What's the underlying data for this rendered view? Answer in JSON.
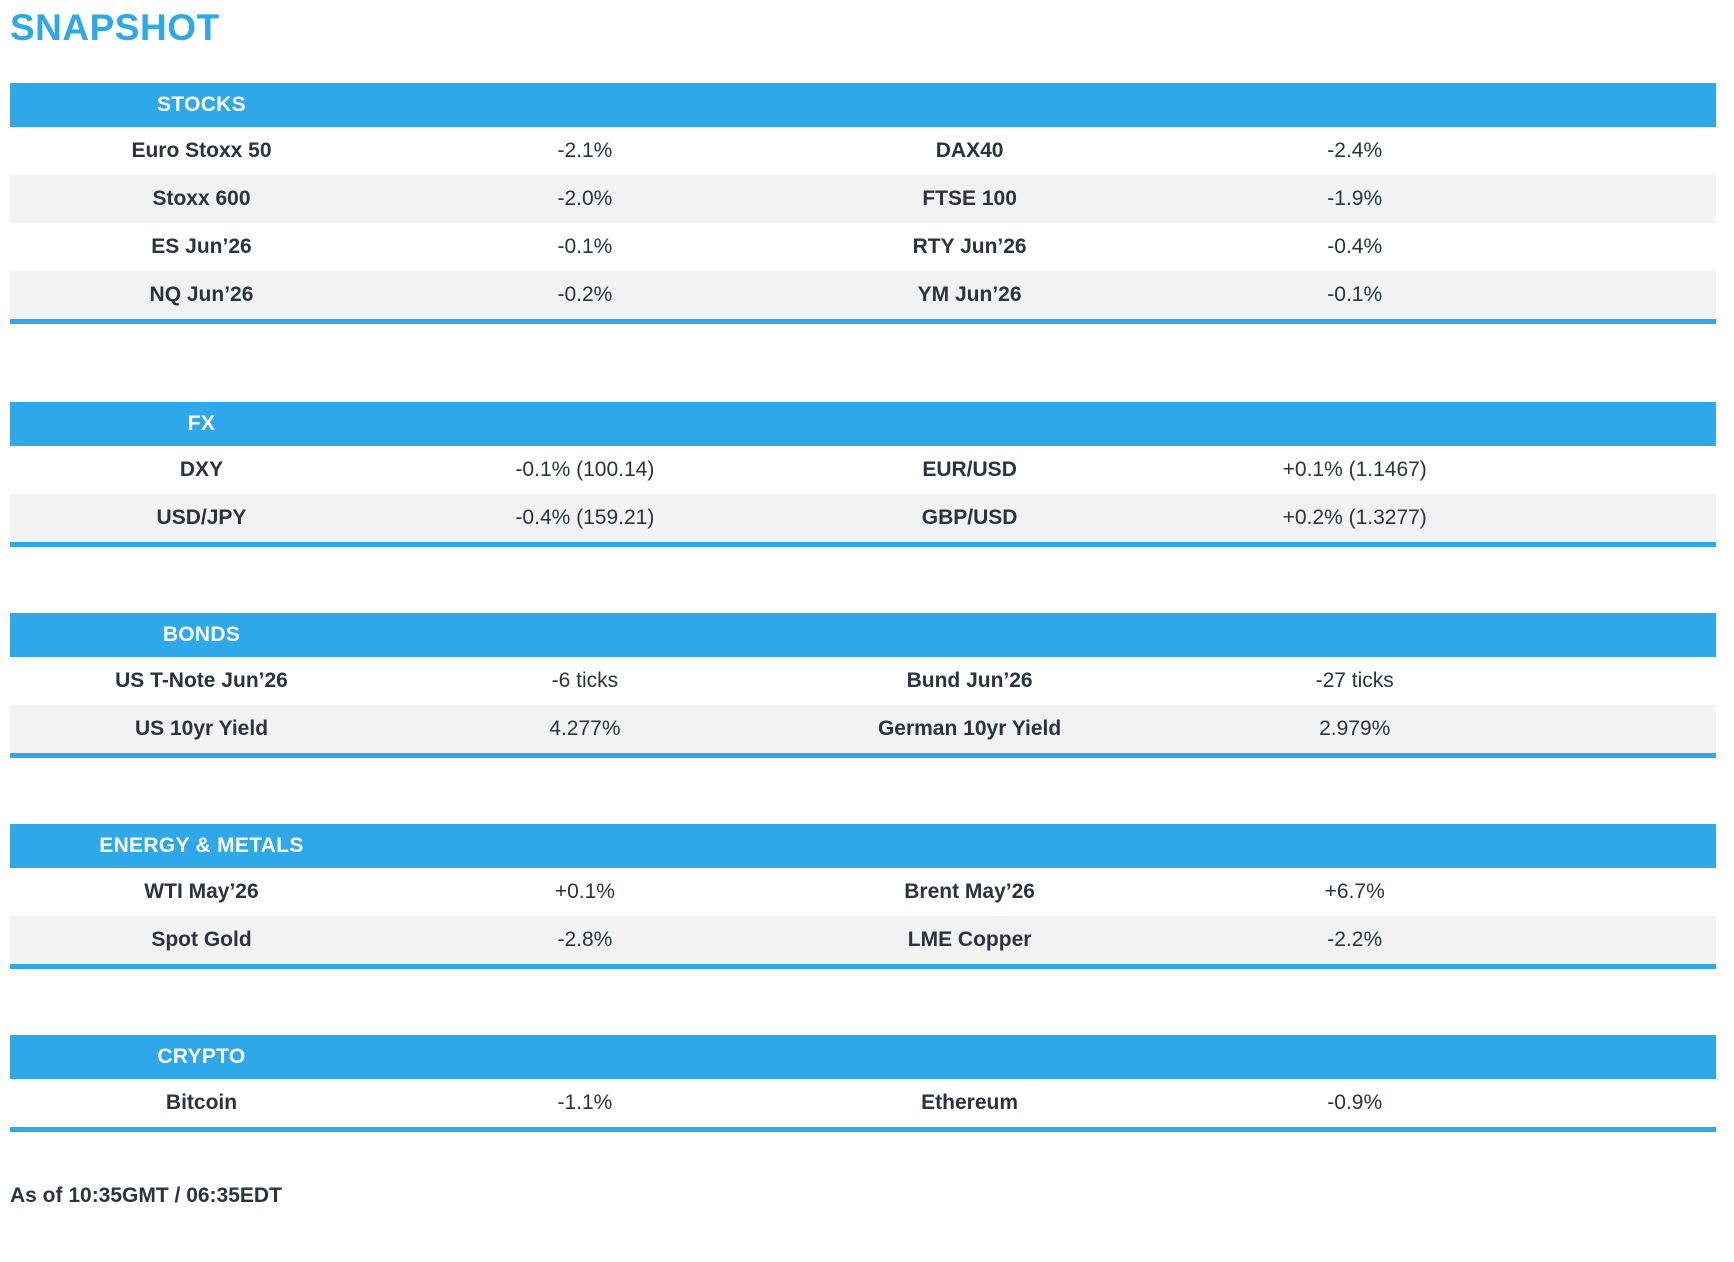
{
  "page": {
    "title": "SNAPSHOT",
    "timestamp": "As of 10:35GMT / 06:35EDT"
  },
  "colors": {
    "accent": "#2FA8E9",
    "stripe": "#F2F2F2",
    "text": "#2B3340",
    "header_text": "#FFFFFF"
  },
  "sections": [
    {
      "header": "STOCKS",
      "rows": [
        {
          "cells": [
            {
              "label": "Euro Stoxx 50",
              "value": "-2.1%"
            },
            {
              "label": "DAX40",
              "value": "-2.4%"
            }
          ]
        },
        {
          "cells": [
            {
              "label": "Stoxx 600",
              "value": "-2.0%"
            },
            {
              "label": "FTSE 100",
              "value": "-1.9%"
            }
          ]
        },
        {
          "cells": [
            {
              "label": "ES Jun’26",
              "value": "-0.1%"
            },
            {
              "label": "RTY Jun’26",
              "value": "-0.4%"
            }
          ]
        },
        {
          "cells": [
            {
              "label": "NQ Jun’26",
              "value": "-0.2%"
            },
            {
              "label": "YM Jun’26",
              "value": "-0.1%"
            }
          ]
        }
      ]
    },
    {
      "header": "FX",
      "rows": [
        {
          "cells": [
            {
              "label": "DXY",
              "value": "-0.1% (100.14)"
            },
            {
              "label": "EUR/USD",
              "value": "+0.1% (1.1467)"
            }
          ]
        },
        {
          "cells": [
            {
              "label": "USD/JPY",
              "value": "-0.4% (159.21)"
            },
            {
              "label": "GBP/USD",
              "value": "+0.2% (1.3277)"
            }
          ]
        }
      ]
    },
    {
      "header": "BONDS",
      "rows": [
        {
          "cells": [
            {
              "label": "US T-Note Jun’26",
              "value": "-6 ticks"
            },
            {
              "label": "Bund Jun’26",
              "value": "-27 ticks"
            }
          ]
        },
        {
          "cells": [
            {
              "label": "US 10yr Yield",
              "value": "4.277%"
            },
            {
              "label": "German 10yr Yield",
              "value": "2.979%"
            }
          ]
        }
      ]
    },
    {
      "header": "ENERGY & METALS",
      "rows": [
        {
          "cells": [
            {
              "label": "WTI May’26",
              "value": "+0.1%"
            },
            {
              "label": "Brent May’26",
              "value": "+6.7%"
            }
          ]
        },
        {
          "cells": [
            {
              "label": "Spot Gold",
              "value": "-2.8%"
            },
            {
              "label": "LME Copper",
              "value": "-2.2%"
            }
          ]
        }
      ]
    },
    {
      "header": "CRYPTO",
      "rows": [
        {
          "cells": [
            {
              "label": "Bitcoin",
              "value": "-1.1%"
            },
            {
              "label": "Ethereum",
              "value": "-0.9%"
            }
          ]
        }
      ]
    }
  ]
}
